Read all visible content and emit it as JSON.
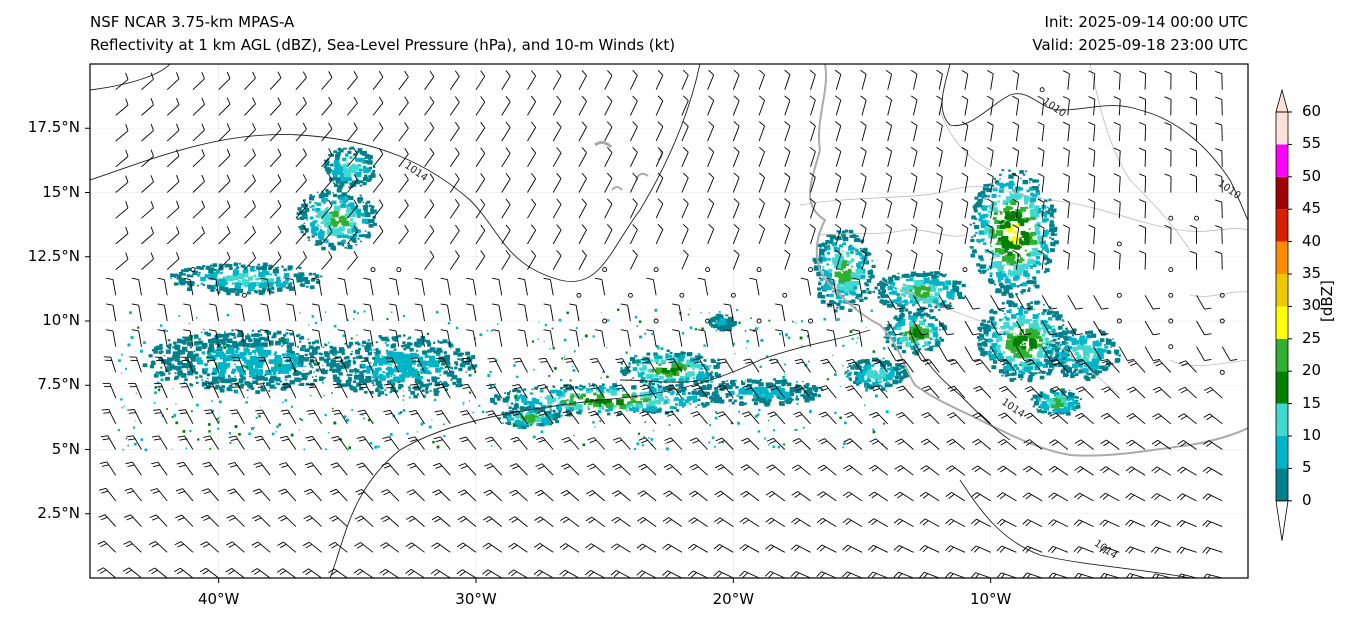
{
  "titles": {
    "left_line1": "NSF NCAR 3.75-km MPAS-A",
    "left_line2": "Reflectivity at 1 km AGL (dBZ), Sea-Level Pressure (hPa), and 10-m Winds (kt)",
    "init": "Init: 2025-09-14 00:00 UTC",
    "valid": "Valid: 2025-09-18 23:00 UTC"
  },
  "axes": {
    "lon_range": [
      -45,
      0
    ],
    "lat_range": [
      0,
      20
    ],
    "lat_ticks": [
      "17.5°N",
      "15°N",
      "12.5°N",
      "10°N",
      "7.5°N",
      "5°N",
      "2.5°N"
    ],
    "lat_values": [
      17.5,
      15,
      12.5,
      10,
      7.5,
      5,
      2.5
    ],
    "lon_ticks": [
      "40°W",
      "30°W",
      "20°W",
      "10°W"
    ],
    "lon_values": [
      -40,
      -30,
      -20,
      -10
    ]
  },
  "isobars": [
    {
      "label": "1014",
      "lon": -32.8,
      "lat": 16.0
    },
    {
      "label": "1010",
      "lon": -8.0,
      "lat": 18.5
    },
    {
      "label": "1010",
      "lon": -1.2,
      "lat": 15.3
    },
    {
      "label": "1014",
      "lon": -6.0,
      "lat": 1.3
    },
    {
      "label": "1014",
      "lon": -9.6,
      "lat": 6.8
    }
  ],
  "colorbar": {
    "unit": "[dBZ]",
    "ticks": [
      "0",
      "5",
      "10",
      "15",
      "20",
      "25",
      "30",
      "35",
      "40",
      "45",
      "50",
      "55",
      "60"
    ],
    "colors": [
      "#ffffff",
      "#00808c",
      "#00b4c8",
      "#40d8d0",
      "#008000",
      "#30b030",
      "#ffff00",
      "#f0c800",
      "#ff8c00",
      "#d82000",
      "#a00000",
      "#ff00ff",
      "#ffe0d8"
    ]
  },
  "echoes": [
    {
      "lon": -35.5,
      "lat": 14.0,
      "rx": 1.6,
      "ry": 1.2,
      "level": 2
    },
    {
      "lon": -35.0,
      "lat": 16.0,
      "rx": 1.0,
      "ry": 0.8,
      "level": 1
    },
    {
      "lon": -39.0,
      "lat": 11.7,
      "rx": 3.0,
      "ry": 0.6,
      "level": 1
    },
    {
      "lon": -39.0,
      "lat": 8.5,
      "rx": 4.0,
      "ry": 1.2,
      "level": 0
    },
    {
      "lon": -33.0,
      "lat": 8.3,
      "rx": 3.0,
      "ry": 1.2,
      "level": 0
    },
    {
      "lon": -25.0,
      "lat": 7.0,
      "rx": 4.5,
      "ry": 0.6,
      "level": 3
    },
    {
      "lon": -22.5,
      "lat": 8.2,
      "rx": 2.0,
      "ry": 0.7,
      "level": 3
    },
    {
      "lon": -28.0,
      "lat": 6.3,
      "rx": 1.2,
      "ry": 0.4,
      "level": 2
    },
    {
      "lon": -19.0,
      "lat": 7.3,
      "rx": 2.5,
      "ry": 0.5,
      "level": 0
    },
    {
      "lon": -15.8,
      "lat": 12.0,
      "rx": 1.2,
      "ry": 1.6,
      "level": 2
    },
    {
      "lon": -12.8,
      "lat": 11.2,
      "rx": 1.8,
      "ry": 0.8,
      "level": 2
    },
    {
      "lon": -13.0,
      "lat": 9.6,
      "rx": 1.2,
      "ry": 0.8,
      "level": 3
    },
    {
      "lon": -9.2,
      "lat": 13.5,
      "rx": 1.7,
      "ry": 2.5,
      "level": 4
    },
    {
      "lon": -8.8,
      "lat": 9.3,
      "rx": 1.8,
      "ry": 1.6,
      "level": 3
    },
    {
      "lon": -6.5,
      "lat": 8.8,
      "rx": 1.5,
      "ry": 1.0,
      "level": 1
    },
    {
      "lon": -7.5,
      "lat": 6.9,
      "rx": 1.0,
      "ry": 0.5,
      "level": 2
    },
    {
      "lon": -20.5,
      "lat": 10.0,
      "rx": 0.5,
      "ry": 0.3,
      "level": 0
    },
    {
      "lon": -14.5,
      "lat": 8.0,
      "rx": 1.2,
      "ry": 0.6,
      "level": 1
    }
  ],
  "calm_points": [
    [
      -41.0,
      12.0
    ],
    [
      -39.0,
      11.0
    ],
    [
      -34.0,
      12.0
    ],
    [
      -33.0,
      12.0
    ],
    [
      -25.0,
      12.0
    ],
    [
      -23.0,
      12.0
    ],
    [
      -21.0,
      12.0
    ],
    [
      -19.0,
      12.0
    ],
    [
      -17.0,
      12.0
    ],
    [
      -26.0,
      11.0
    ],
    [
      -24.0,
      11.0
    ],
    [
      -22.0,
      11.0
    ],
    [
      -20.0,
      11.0
    ],
    [
      -18.0,
      11.0
    ],
    [
      -25.0,
      10.0
    ],
    [
      -23.0,
      10.0
    ],
    [
      -21.0,
      10.0
    ],
    [
      -19.0,
      10.0
    ],
    [
      -17.0,
      10.0
    ],
    [
      -3.0,
      14.0
    ],
    [
      -2.0,
      14.0
    ],
    [
      -5.0,
      13.0
    ],
    [
      -3.0,
      12.0
    ],
    [
      -5.0,
      11.0
    ],
    [
      -3.0,
      11.0
    ],
    [
      -1.0,
      11.0
    ],
    [
      -5.0,
      10.0
    ],
    [
      -3.0,
      10.0
    ],
    [
      -1.0,
      10.0
    ],
    [
      -3.0,
      9.0
    ],
    [
      -1.0,
      8.0
    ],
    [
      -8.0,
      19.0
    ],
    [
      -11.0,
      12.0
    ]
  ]
}
